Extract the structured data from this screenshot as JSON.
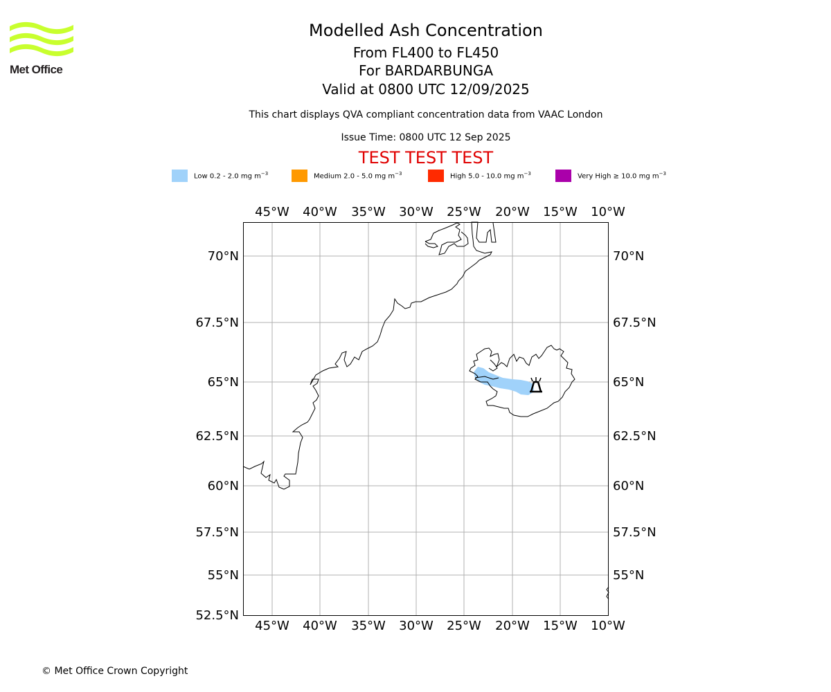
{
  "logo": {
    "text": "Met Office",
    "color": "#c8ff2e"
  },
  "header": {
    "title": "Modelled Ash Concentration",
    "flight_levels": "From FL400 to FL450",
    "volcano": "For BARDARBUNGA",
    "valid_time": "Valid at 0800 UTC 12/09/2025",
    "note": "This chart displays QVA compliant concentration data from VAAC London",
    "issue_time": "Issue Time: 0800 UTC 12 Sep 2025",
    "test_banner": "TEST TEST TEST",
    "test_color": "#e00000"
  },
  "legend": [
    {
      "label": "Low 0.2 - 2.0 mg m",
      "color": "#a0d2fa"
    },
    {
      "label": "Medium 2.0 - 5.0 mg m",
      "color": "#ff9900"
    },
    {
      "label": "High 5.0 - 10.0 mg m",
      "color": "#ff2a00"
    },
    {
      "label": "Very High ≥ 10.0 mg m",
      "color": "#aa00aa"
    }
  ],
  "legend_unit_exponent": "−3",
  "map": {
    "lon_range": [
      -48,
      -10
    ],
    "lat_range": [
      52.5,
      72.5
    ],
    "lon_ticks": [
      "45°W",
      "40°W",
      "35°W",
      "30°W",
      "25°W",
      "20°W",
      "15°W",
      "10°W"
    ],
    "lat_ticks": [
      "70°N",
      "67.5°N",
      "65°N",
      "62.5°N",
      "60°N",
      "57.5°N",
      "55°N",
      "52.5°N"
    ],
    "lat_ticks_right": [
      "70°N",
      "67.5°N",
      "65°N",
      "62.5°N",
      "60°N",
      "57.5°N",
      "55°N"
    ],
    "volcano_marker": "volcano-icon",
    "ash_level": "Low"
  },
  "footer": {
    "copyright": "© Met Office Crown Copyright"
  }
}
